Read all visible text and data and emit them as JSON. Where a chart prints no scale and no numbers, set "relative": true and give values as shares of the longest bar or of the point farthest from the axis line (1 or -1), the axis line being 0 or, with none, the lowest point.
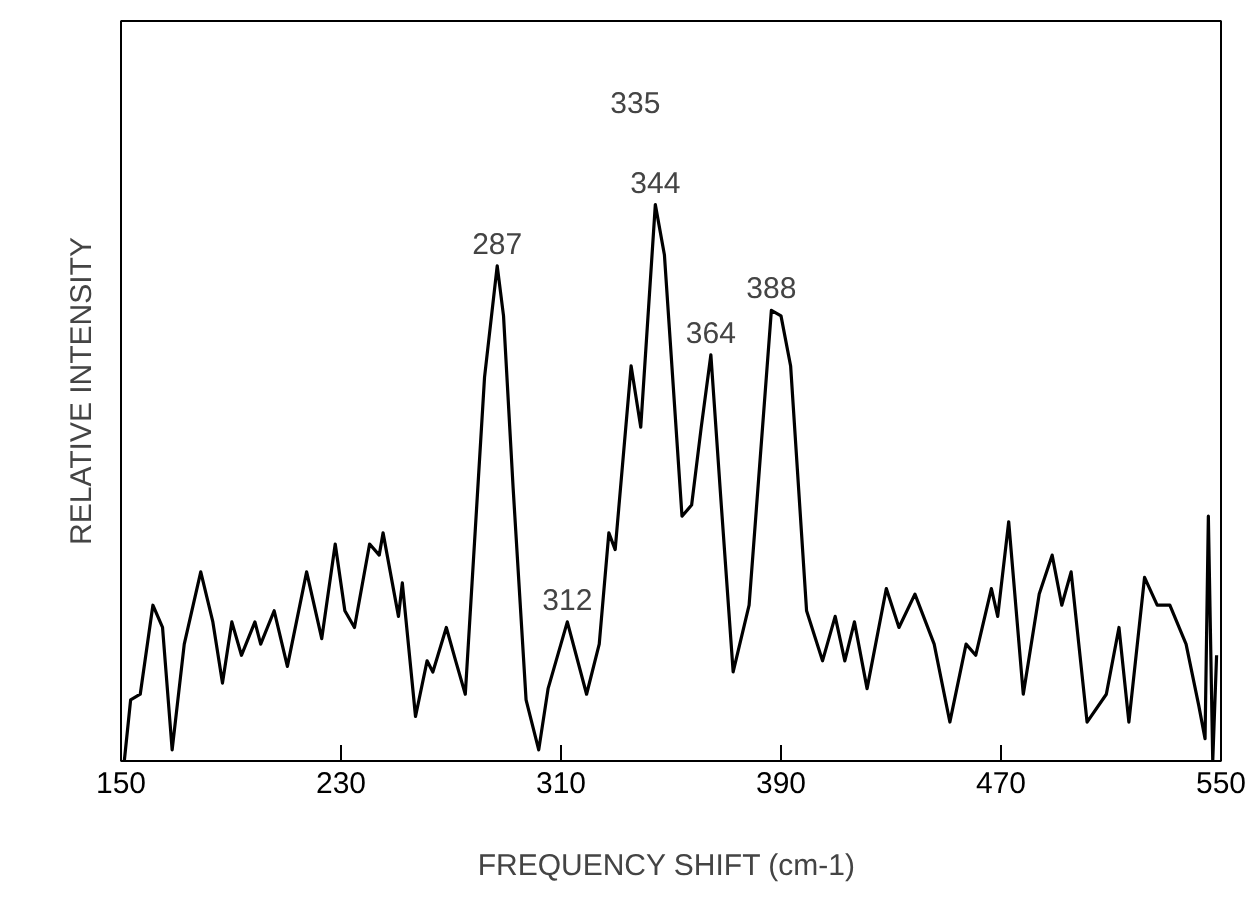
{
  "chart_data": {
    "type": "line",
    "relative": true,
    "xlabel": "FREQUENCY SHIFT  (cm-1)",
    "ylabel": "RELATIVE INTENSITY",
    "xlim": [
      150,
      550
    ],
    "xticks": [
      150,
      230,
      310,
      390,
      470,
      550
    ],
    "tick_labels": "x",
    "line_style": "solid",
    "series": [
      {
        "color": "#000000",
        "x": [
          151.2,
          153.5,
          157.0,
          161.6,
          165.1,
          168.6,
          173.0,
          179.0,
          183.4,
          186.9,
          190.3,
          193.8,
          198.7,
          200.8,
          205.7,
          210.5,
          217.5,
          223.0,
          227.9,
          231.4,
          234.9,
          240.4,
          243.9,
          245.3,
          250.9,
          252.3,
          257.1,
          261.3,
          263.4,
          268.3,
          271.7,
          275.2,
          282.2,
          286.8,
          289.1,
          292.6,
          297.3,
          301.9,
          305.3,
          312.3,
          319.3,
          323.9,
          327.4,
          329.7,
          335.5,
          339.0,
          344.3,
          347.6,
          354.0,
          357.5,
          361.0,
          364.5,
          368.0,
          372.6,
          378.4,
          386.5,
          390.0,
          393.5,
          399.3,
          405.1,
          409.7,
          413.2,
          416.7,
          421.3,
          428.3,
          432.9,
          438.7,
          445.7,
          451.4,
          457.3,
          460.8,
          466.5,
          468.8,
          472.8,
          478.1,
          483.9,
          488.6,
          492.1,
          495.5,
          501.3,
          508.3,
          512.9,
          516.5,
          522.2,
          526.8,
          531.4,
          537.3,
          541.9,
          544.2,
          545.4,
          547.0,
          548.4
        ],
        "values": [
          0.0,
          0.11,
          0.12,
          0.28,
          0.24,
          0.02,
          0.21,
          0.34,
          0.25,
          0.14,
          0.25,
          0.19,
          0.25,
          0.21,
          0.27,
          0.17,
          0.34,
          0.22,
          0.39,
          0.27,
          0.24,
          0.39,
          0.37,
          0.41,
          0.26,
          0.32,
          0.08,
          0.18,
          0.16,
          0.24,
          0.18,
          0.12,
          0.69,
          0.89,
          0.8,
          0.49,
          0.11,
          0.02,
          0.13,
          0.25,
          0.12,
          0.21,
          0.41,
          0.38,
          0.71,
          0.6,
          1.0,
          0.91,
          0.44,
          0.46,
          0.6,
          0.73,
          0.48,
          0.16,
          0.28,
          0.81,
          0.8,
          0.71,
          0.27,
          0.18,
          0.26,
          0.18,
          0.25,
          0.13,
          0.31,
          0.24,
          0.3,
          0.21,
          0.07,
          0.21,
          0.19,
          0.31,
          0.26,
          0.43,
          0.12,
          0.3,
          0.37,
          0.28,
          0.34,
          0.07,
          0.12,
          0.24,
          0.07,
          0.33,
          0.28,
          0.28,
          0.21,
          0.1,
          0.04,
          0.44,
          0.0,
          0.19
        ]
      }
    ],
    "annotations": [
      {
        "text": "287",
        "x": 286.8,
        "y": 0.89
      },
      {
        "text": "312",
        "x": 312.3,
        "y": 0.25
      },
      "335",
      {
        "text": "344",
        "x": 344.3,
        "y": 1.0
      },
      {
        "text": "364",
        "x": 364.5,
        "y": 0.73
      },
      {
        "text": "388",
        "x": 386.5,
        "y": 0.81
      }
    ]
  }
}
